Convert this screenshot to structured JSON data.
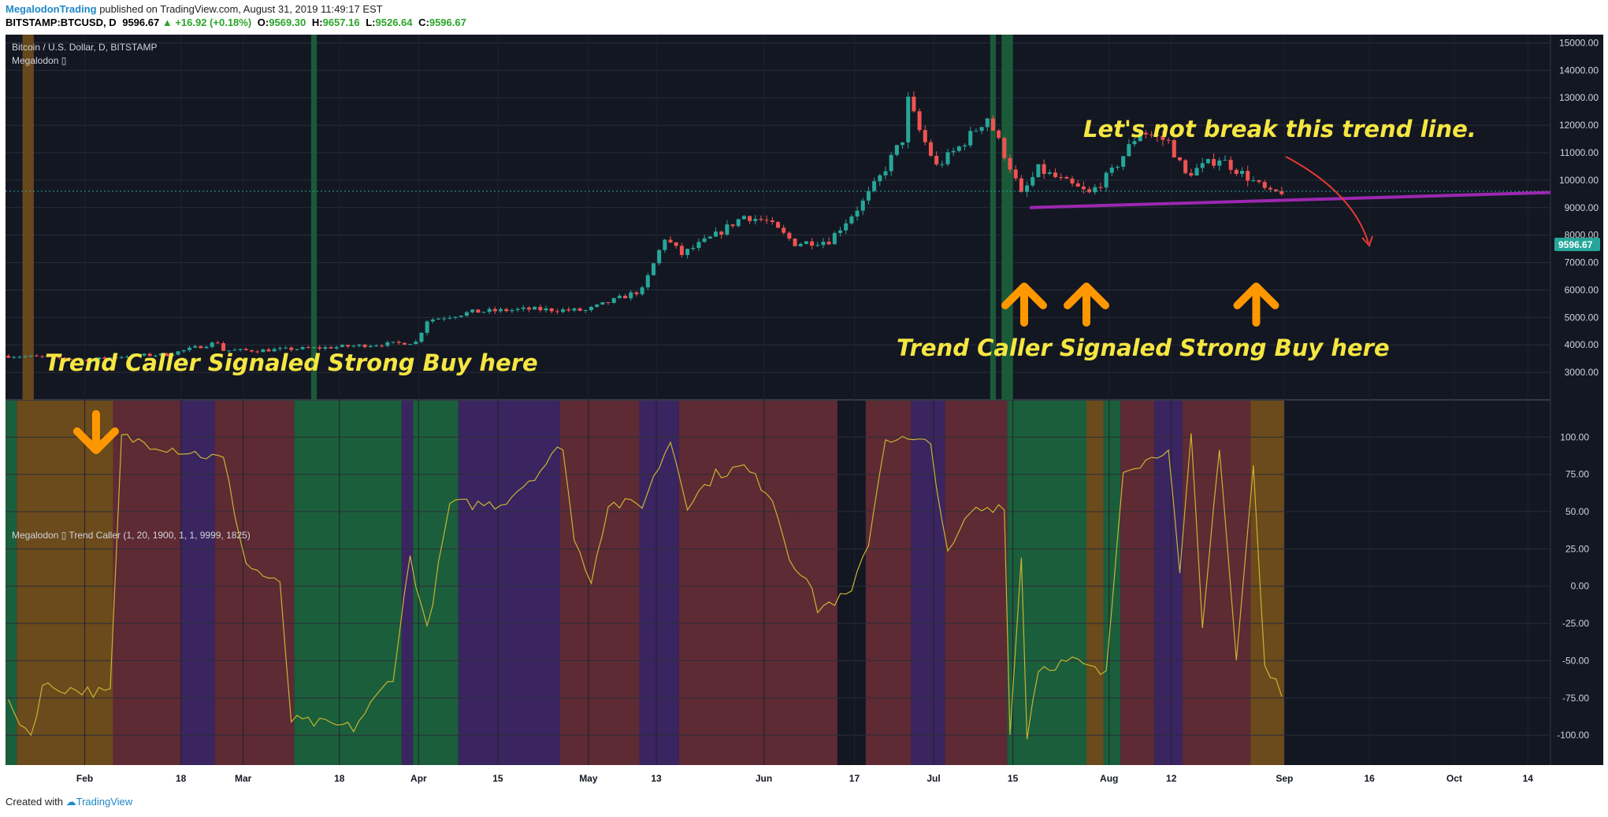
{
  "header": {
    "author": "MegalodonTrading",
    "published": "published on TradingView.com, August 31, 2019 11:49:17 EST",
    "symbol": "BITSTAMP:BTCUSD, D",
    "price": "9596.67",
    "change": "▲ +16.92 (+0.18%)",
    "o_label": "O:",
    "o_value": "9569.30",
    "h_label": "H:",
    "h_value": "9657.16",
    "l_label": "L:",
    "l_value": "9526.64",
    "c_label": "C:",
    "c_value": "9596.67"
  },
  "footer": {
    "created_with": "Created with",
    "brand": "TradingView"
  },
  "colors": {
    "background": "#131722",
    "up": "#26a69a",
    "down": "#ef5350",
    "annotation": "#f5e642",
    "arrow": "#ff9800",
    "trendline": "#9c27b0",
    "oscillator": "#c8b432",
    "zone_green": "#1b5e3b",
    "zone_red": "#5e2a33",
    "zone_purple": "#3a2560",
    "zone_orange": "#6b4a1c"
  },
  "chart_data": [
    {
      "type": "candlestick",
      "title": "Bitcoin / U.S. Dollar, D, BITSTAMP",
      "indicator": "Megalodon ▯",
      "last_price": "9596.67",
      "ylim": [
        2000,
        15300
      ],
      "y_ticks": [
        "15000.00",
        "14000.00",
        "13000.00",
        "12000.00",
        "11000.00",
        "10000.00",
        "9000.00",
        "8000.00",
        "7000.00",
        "6000.00",
        "5000.00",
        "4000.00",
        "3000.00"
      ],
      "x_ticks": [
        "Feb",
        "18",
        "Mar",
        "18",
        "Apr",
        "15",
        "May",
        "13",
        "Jun",
        "17",
        "Jul",
        "15",
        "Aug",
        "12",
        "Sep",
        "16",
        "Oct",
        "14"
      ],
      "date_range": [
        "2019-01-18",
        "2019-10-18"
      ],
      "trend_line": {
        "from": [
          "2019-07-18",
          9000
        ],
        "to": [
          "2019-10-18",
          9550
        ]
      },
      "annotations": [
        "Trend Caller Signaled Strong Buy here",
        "Trend Caller Signaled Strong Buy here",
        "Let's not break this trend line."
      ],
      "buy_arrows": [
        "2019-02-03",
        "2019-07-17",
        "2019-07-28",
        "2019-08-27"
      ],
      "anchors": [
        [
          "2019-01-18",
          3600
        ],
        [
          "2019-01-25",
          3550
        ],
        [
          "2019-02-01",
          3450
        ],
        [
          "2019-02-08",
          3600
        ],
        [
          "2019-02-15",
          3650
        ],
        [
          "2019-02-24",
          4100
        ],
        [
          "2019-02-25",
          3800
        ],
        [
          "2019-03-03",
          3800
        ],
        [
          "2019-03-15",
          3900
        ],
        [
          "2019-03-31",
          4100
        ],
        [
          "2019-04-02",
          4900
        ],
        [
          "2019-04-10",
          5200
        ],
        [
          "2019-04-20",
          5300
        ],
        [
          "2019-04-30",
          5250
        ],
        [
          "2019-05-10",
          6000
        ],
        [
          "2019-05-14",
          7900
        ],
        [
          "2019-05-17",
          7300
        ],
        [
          "2019-05-23",
          8000
        ],
        [
          "2019-05-28",
          8700
        ],
        [
          "2019-06-01",
          8500
        ],
        [
          "2019-06-06",
          7700
        ],
        [
          "2019-06-12",
          7800
        ],
        [
          "2019-06-18",
          9200
        ],
        [
          "2019-06-21",
          10100
        ],
        [
          "2019-06-25",
          11500
        ],
        [
          "2019-06-26",
          12900
        ],
        [
          "2019-06-28",
          11800
        ],
        [
          "2019-07-01",
          10500
        ],
        [
          "2019-07-05",
          11200
        ],
        [
          "2019-07-10",
          12300
        ],
        [
          "2019-07-14",
          10500
        ],
        [
          "2019-07-16",
          9450
        ],
        [
          "2019-07-19",
          10400
        ],
        [
          "2019-07-23",
          10000
        ],
        [
          "2019-07-28",
          9500
        ],
        [
          "2019-08-01",
          10300
        ],
        [
          "2019-08-06",
          11800
        ],
        [
          "2019-08-11",
          11400
        ],
        [
          "2019-08-14",
          10200
        ],
        [
          "2019-08-20",
          10800
        ],
        [
          "2019-08-25",
          10100
        ],
        [
          "2019-08-29",
          9500
        ],
        [
          "2019-08-31",
          9596.67
        ]
      ],
      "signal_bands": [
        {
          "from": "2019-01-21",
          "to": "2019-01-22",
          "color": "orange"
        },
        {
          "from": "2019-03-13",
          "to": "2019-03-13",
          "color": "green"
        },
        {
          "from": "2019-07-11",
          "to": "2019-07-11",
          "color": "green"
        },
        {
          "from": "2019-07-13",
          "to": "2019-07-14",
          "color": "green"
        }
      ]
    },
    {
      "type": "line",
      "title": "Megalodon ▯ Trend Caller  (1, 20, 1900, 1, 1, 9999, 1825)",
      "ylim": [
        -120,
        125
      ],
      "y_ticks": [
        "100.00",
        "75.00",
        "50.00",
        "25.00",
        "0.00",
        "-25.00",
        "-50.00",
        "-75.00",
        "-100.00"
      ],
      "anchors": [
        [
          "2019-01-18",
          -80
        ],
        [
          "2019-01-22",
          -100
        ],
        [
          "2019-01-24",
          -67
        ],
        [
          "2019-02-05",
          -72
        ],
        [
          "2019-02-07",
          100
        ],
        [
          "2019-02-25",
          85
        ],
        [
          "2019-03-01",
          15
        ],
        [
          "2019-03-07",
          0
        ],
        [
          "2019-03-09",
          -90
        ],
        [
          "2019-03-20",
          -95
        ],
        [
          "2019-03-27",
          -60
        ],
        [
          "2019-03-30",
          20
        ],
        [
          "2019-04-02",
          -30
        ],
        [
          "2019-04-06",
          55
        ],
        [
          "2019-04-15",
          55
        ],
        [
          "2019-04-22",
          78
        ],
        [
          "2019-04-26",
          95
        ],
        [
          "2019-04-28",
          30
        ],
        [
          "2019-05-01",
          5
        ],
        [
          "2019-05-04",
          55
        ],
        [
          "2019-05-10",
          55
        ],
        [
          "2019-05-15",
          98
        ],
        [
          "2019-05-18",
          55
        ],
        [
          "2019-05-23",
          75
        ],
        [
          "2019-05-28",
          80
        ],
        [
          "2019-06-02",
          60
        ],
        [
          "2019-06-05",
          20
        ],
        [
          "2019-06-08",
          5
        ],
        [
          "2019-06-10",
          -15
        ],
        [
          "2019-06-16",
          -5
        ],
        [
          "2019-06-19",
          30
        ],
        [
          "2019-06-22",
          100
        ],
        [
          "2019-06-30",
          95
        ],
        [
          "2019-07-03",
          20
        ],
        [
          "2019-07-07",
          50
        ],
        [
          "2019-07-13",
          55
        ],
        [
          "2019-07-14",
          -100
        ],
        [
          "2019-07-16",
          20
        ],
        [
          "2019-07-17",
          -100
        ],
        [
          "2019-07-19",
          -55
        ],
        [
          "2019-07-25",
          -50
        ],
        [
          "2019-07-31",
          -60
        ],
        [
          "2019-08-03",
          80
        ],
        [
          "2019-08-08",
          85
        ],
        [
          "2019-08-11",
          95
        ],
        [
          "2019-08-13",
          5
        ],
        [
          "2019-08-15",
          100
        ],
        [
          "2019-08-17",
          -30
        ],
        [
          "2019-08-20",
          95
        ],
        [
          "2019-08-23",
          -50
        ],
        [
          "2019-08-26",
          80
        ],
        [
          "2019-08-28",
          -55
        ],
        [
          "2019-08-31",
          -70
        ]
      ],
      "background_zones": [
        {
          "from": "2019-01-18",
          "to": "2019-01-19",
          "color": "green"
        },
        {
          "from": "2019-01-20",
          "to": "2019-02-05",
          "color": "orange"
        },
        {
          "from": "2019-02-06",
          "to": "2019-02-17",
          "color": "red"
        },
        {
          "from": "2019-02-18",
          "to": "2019-02-23",
          "color": "purple"
        },
        {
          "from": "2019-02-24",
          "to": "2019-03-09",
          "color": "red"
        },
        {
          "from": "2019-03-10",
          "to": "2019-03-28",
          "color": "green"
        },
        {
          "from": "2019-03-29",
          "to": "2019-03-30",
          "color": "purple"
        },
        {
          "from": "2019-03-31",
          "to": "2019-04-07",
          "color": "green"
        },
        {
          "from": "2019-04-08",
          "to": "2019-04-25",
          "color": "purple"
        },
        {
          "from": "2019-04-26",
          "to": "2019-05-09",
          "color": "red"
        },
        {
          "from": "2019-05-10",
          "to": "2019-05-16",
          "color": "purple"
        },
        {
          "from": "2019-05-17",
          "to": "2019-06-06",
          "color": "red"
        },
        {
          "from": "2019-06-07",
          "to": "2019-06-13",
          "color": "red"
        },
        {
          "from": "2019-06-14",
          "to": "2019-06-18",
          "color": "none"
        },
        {
          "from": "2019-06-19",
          "to": "2019-06-26",
          "color": "red"
        },
        {
          "from": "2019-06-27",
          "to": "2019-07-02",
          "color": "purple"
        },
        {
          "from": "2019-07-03",
          "to": "2019-07-13",
          "color": "red"
        },
        {
          "from": "2019-07-14",
          "to": "2019-07-27",
          "color": "green"
        },
        {
          "from": "2019-07-28",
          "to": "2019-07-30",
          "color": "orange"
        },
        {
          "from": "2019-07-31",
          "to": "2019-08-02",
          "color": "green"
        },
        {
          "from": "2019-08-03",
          "to": "2019-08-08",
          "color": "red"
        },
        {
          "from": "2019-08-09",
          "to": "2019-08-13",
          "color": "purple"
        },
        {
          "from": "2019-08-14",
          "to": "2019-08-25",
          "color": "red"
        },
        {
          "from": "2019-08-26",
          "to": "2019-08-31",
          "color": "orange"
        }
      ]
    }
  ]
}
